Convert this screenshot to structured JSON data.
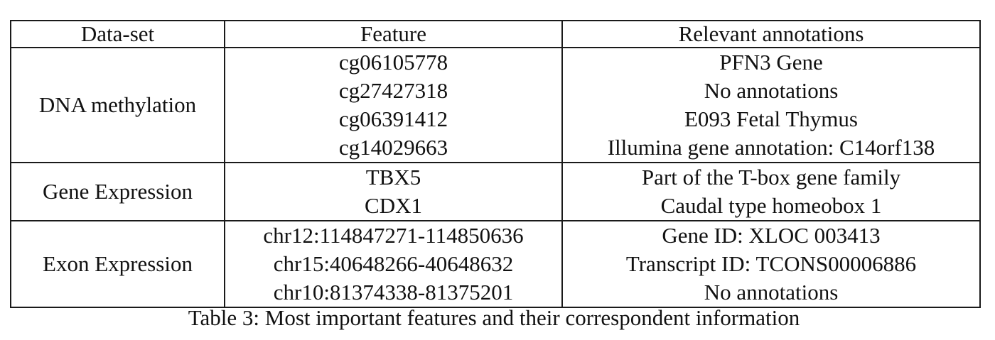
{
  "table": {
    "headers": [
      "Data-set",
      "Feature",
      "Relevant annotations"
    ],
    "groups": [
      {
        "dataset": "DNA methylation",
        "rows": [
          {
            "feature": "cg06105778",
            "annotation": "PFN3 Gene"
          },
          {
            "feature": "cg27427318",
            "annotation": "No annotations"
          },
          {
            "feature": "cg06391412",
            "annotation": "E093 Fetal Thymus"
          },
          {
            "feature": "cg14029663",
            "annotation": "Illumina gene annotation: C14orf138"
          }
        ]
      },
      {
        "dataset": "Gene Expression",
        "rows": [
          {
            "feature": "TBX5",
            "annotation": "Part of the T-box gene family"
          },
          {
            "feature": "CDX1",
            "annotation": "Caudal type homeobox 1"
          }
        ]
      },
      {
        "dataset": "Exon Expression",
        "rows": [
          {
            "feature": "chr12:114847271-114850636",
            "annotation": "Gene ID: XLOC 003413"
          },
          {
            "feature": "chr15:40648266-40648632",
            "annotation": "Transcript ID: TCONS00006886"
          },
          {
            "feature": "chr10:81374338-81375201",
            "annotation": "No annotations"
          }
        ]
      }
    ]
  },
  "caption": "Table 3: Most important features and their correspondent information"
}
